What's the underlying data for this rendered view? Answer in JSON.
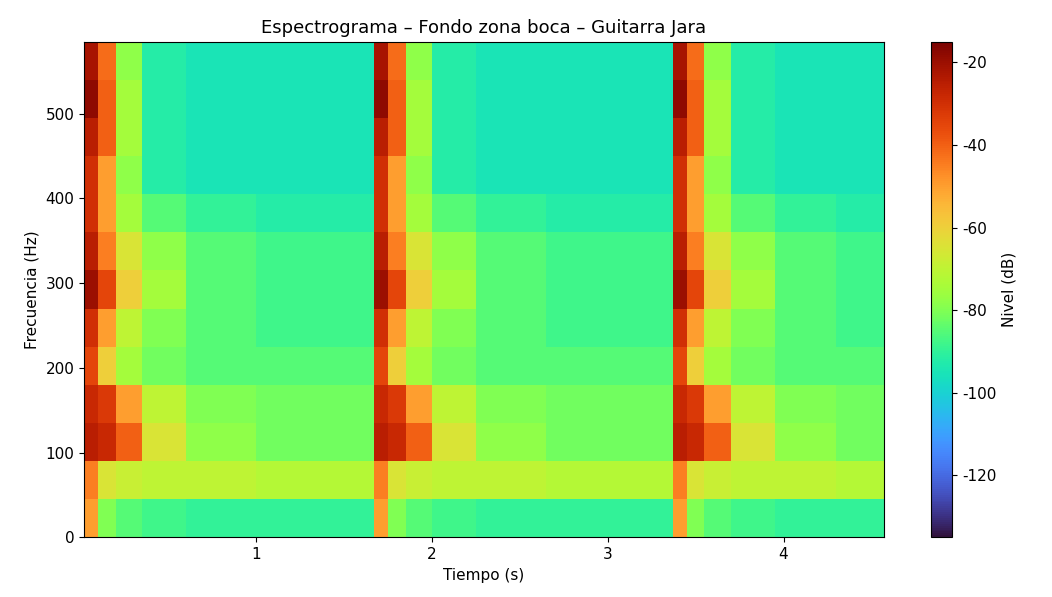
{
  "chart_data": {
    "type": "heatmap",
    "title": "Espectrograma – Fondo zona boca – Guitarra Jara",
    "x_label": "Tiempo (s)",
    "y_label": "Frecuencia (Hz)",
    "x_edges": [
      0.02,
      0.1,
      0.2,
      0.35,
      0.6,
      1.0,
      1.4,
      1.67,
      1.75,
      1.85,
      2.0,
      2.25,
      2.65,
      3.05,
      3.37,
      3.45,
      3.55,
      3.7,
      3.95,
      4.3,
      4.57
    ],
    "y_edges": [
      0,
      45,
      90,
      135,
      180,
      225,
      270,
      315,
      360,
      405,
      450,
      495,
      540,
      585
    ],
    "cells": [
      [
        -50,
        -80,
        -85,
        -88,
        -90,
        -90,
        -90,
        -50,
        -80,
        -85,
        -88,
        -90,
        -90,
        -90,
        -50,
        -80,
        -85,
        -88,
        -90,
        -90
      ],
      [
        -45,
        -65,
        -68,
        -70,
        -70,
        -72,
        -72,
        -45,
        -65,
        -68,
        -70,
        -70,
        -72,
        -72,
        -45,
        -65,
        -68,
        -70,
        -70,
        -72
      ],
      [
        -25,
        -28,
        -40,
        -65,
        -78,
        -82,
        -82,
        -25,
        -28,
        -40,
        -65,
        -78,
        -82,
        -82,
        -25,
        -28,
        -40,
        -65,
        -78,
        -82
      ],
      [
        -28,
        -32,
        -50,
        -70,
        -80,
        -82,
        -82,
        -28,
        -32,
        -50,
        -70,
        -80,
        -82,
        -82,
        -28,
        -32,
        -50,
        -70,
        -80,
        -82
      ],
      [
        -35,
        -60,
        -75,
        -82,
        -85,
        -85,
        -85,
        -35,
        -60,
        -75,
        -82,
        -85,
        -85,
        -85,
        -35,
        -60,
        -75,
        -82,
        -85,
        -85
      ],
      [
        -30,
        -50,
        -70,
        -80,
        -85,
        -88,
        -88,
        -30,
        -50,
        -70,
        -80,
        -85,
        -88,
        -88,
        -30,
        -50,
        -70,
        -80,
        -85,
        -88
      ],
      [
        -20,
        -35,
        -60,
        -75,
        -85,
        -88,
        -88,
        -20,
        -35,
        -60,
        -75,
        -85,
        -88,
        -88,
        -20,
        -35,
        -60,
        -75,
        -85,
        -88
      ],
      [
        -25,
        -45,
        -65,
        -78,
        -85,
        -88,
        -88,
        -25,
        -45,
        -65,
        -78,
        -85,
        -88,
        -88,
        -25,
        -45,
        -65,
        -78,
        -85,
        -88
      ],
      [
        -30,
        -50,
        -75,
        -85,
        -90,
        -92,
        -92,
        -30,
        -50,
        -75,
        -85,
        -90,
        -92,
        -92,
        -30,
        -50,
        -75,
        -85,
        -90,
        -92
      ],
      [
        -30,
        -50,
        -78,
        -92,
        -95,
        -95,
        -95,
        -30,
        -50,
        -78,
        -92,
        -95,
        -95,
        -95,
        -30,
        -50,
        -78,
        -92,
        -95,
        -95
      ],
      [
        -25,
        -40,
        -75,
        -92,
        -95,
        -95,
        -95,
        -25,
        -40,
        -75,
        -92,
        -95,
        -95,
        -95,
        -25,
        -40,
        -75,
        -92,
        -95,
        -95
      ],
      [
        -18,
        -40,
        -75,
        -92,
        -95,
        -95,
        -95,
        -18,
        -40,
        -75,
        -92,
        -95,
        -95,
        -95,
        -18,
        -40,
        -75,
        -92,
        -95,
        -95
      ],
      [
        -22,
        -42,
        -78,
        -92,
        -95,
        -95,
        -95,
        -22,
        -42,
        -78,
        -92,
        -95,
        -95,
        -95,
        -22,
        -42,
        -78,
        -92,
        -95,
        -95
      ]
    ],
    "xlim": [
      0.02,
      4.57
    ],
    "ylim": [
      0,
      585
    ],
    "xticks": [
      1,
      2,
      3,
      4
    ],
    "yticks": [
      0,
      100,
      200,
      300,
      400,
      500
    ],
    "colorbar_label": "Nivel (dB)",
    "colorbar_range": [
      -135,
      -15
    ],
    "colorbar_ticks": [
      -120,
      -100,
      -80,
      -60,
      -40,
      -20
    ]
  }
}
